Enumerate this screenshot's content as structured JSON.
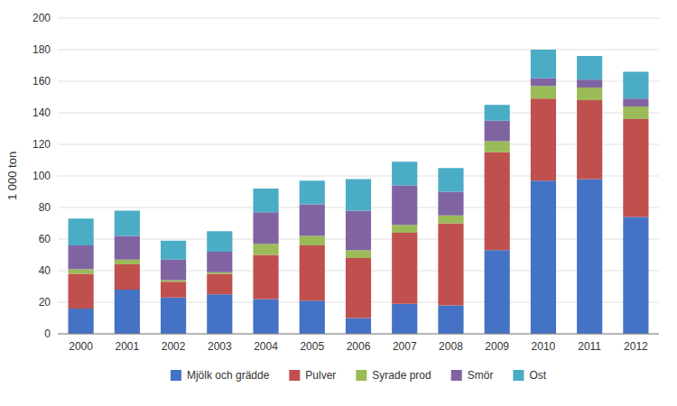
{
  "chart_data": {
    "type": "bar",
    "stacked": true,
    "categories": [
      2000,
      2001,
      2002,
      2003,
      2004,
      2005,
      2006,
      2007,
      2008,
      2009,
      2010,
      2011,
      2012
    ],
    "series": [
      {
        "name": "Mjölk och grädde",
        "color": "#4472c4",
        "values": [
          16,
          28,
          23,
          25,
          22,
          21,
          10,
          19,
          18,
          53,
          97,
          98,
          74
        ]
      },
      {
        "name": "Pulver",
        "color": "#c0504d",
        "values": [
          22,
          16,
          10,
          13,
          28,
          35,
          38,
          45,
          52,
          62,
          52,
          50,
          62
        ]
      },
      {
        "name": "Syrade prod",
        "color": "#9bbb59",
        "values": [
          3,
          3,
          1,
          1,
          7,
          6,
          5,
          5,
          5,
          7,
          8,
          8,
          8
        ]
      },
      {
        "name": "Smör",
        "color": "#8064a2",
        "values": [
          15,
          15,
          13,
          13,
          20,
          20,
          25,
          25,
          15,
          13,
          5,
          5,
          5
        ]
      },
      {
        "name": "Ost",
        "color": "#4bacc6",
        "values": [
          17,
          16,
          12,
          13,
          15,
          15,
          20,
          15,
          15,
          10,
          18,
          15,
          17
        ]
      }
    ],
    "ylabel": "1 000 ton",
    "ylim": [
      0,
      200
    ],
    "yticks": [
      0,
      20,
      40,
      60,
      80,
      100,
      120,
      140,
      160,
      180,
      200
    ],
    "grid": true,
    "legend": "bottom"
  }
}
